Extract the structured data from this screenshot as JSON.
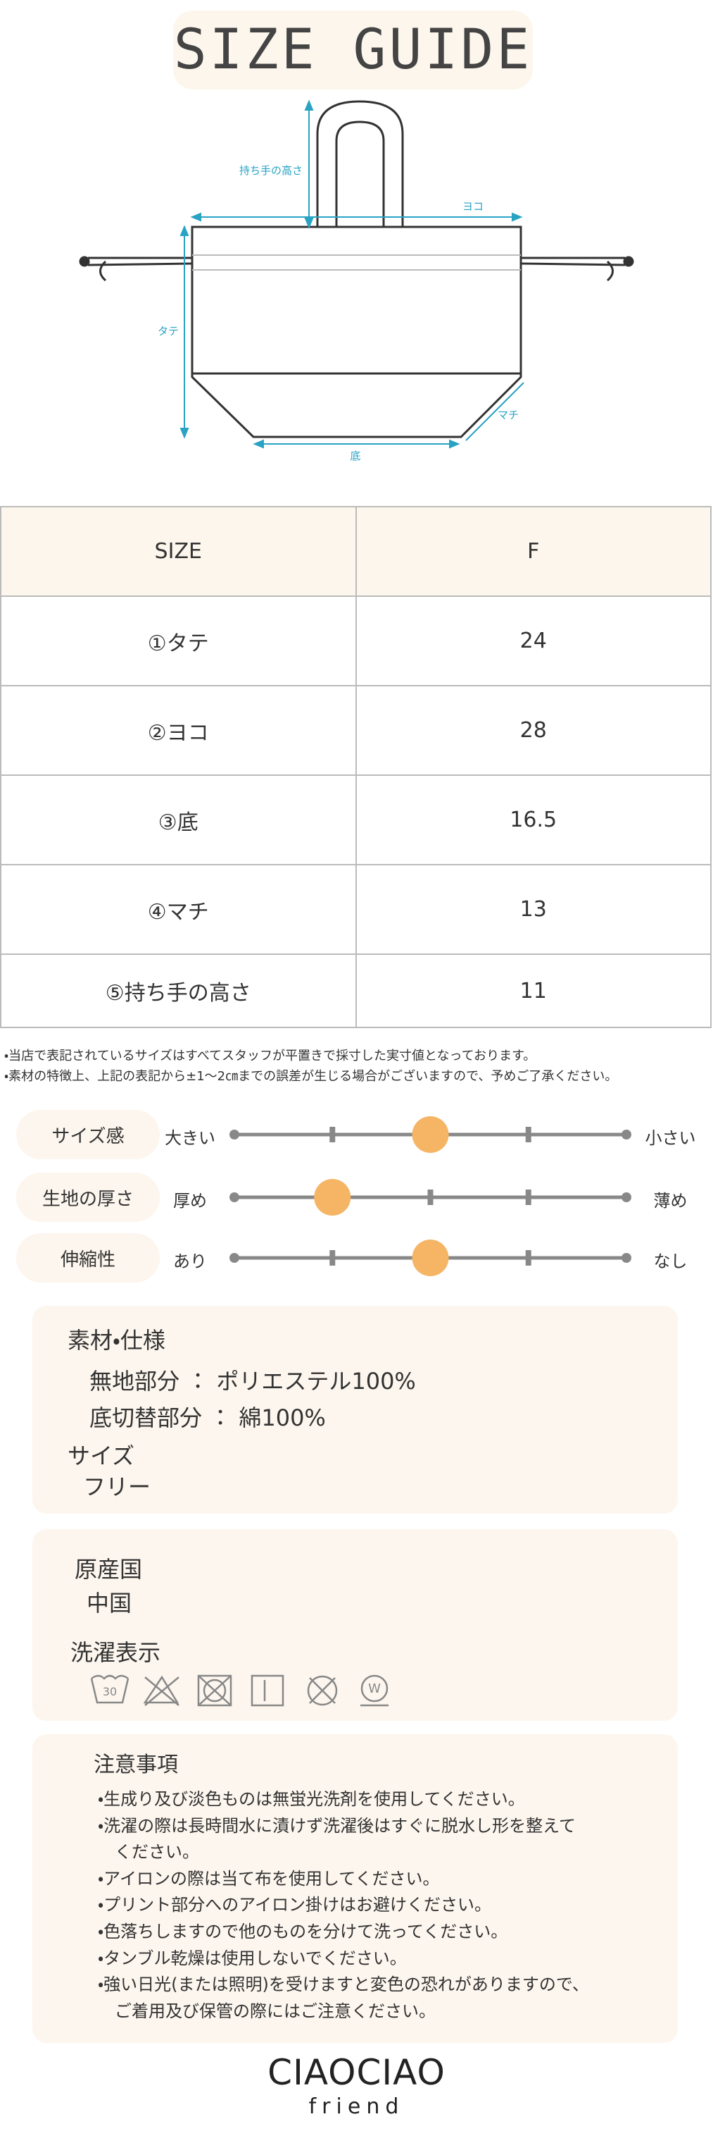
{
  "header": {
    "title": "SIZE GUIDE"
  },
  "diagram": {
    "handle_height": "持ち手の高さ",
    "width": "ヨコ",
    "height": "タテ",
    "bottom": "底",
    "gusset": "マチ"
  },
  "table": {
    "header": [
      "SIZE",
      "F"
    ],
    "rows": [
      [
        "①タテ",
        "24"
      ],
      [
        "②ヨコ",
        "28"
      ],
      [
        "③底",
        "16.5"
      ],
      [
        "④マチ",
        "13"
      ],
      [
        "⑤持ち手の高さ",
        "11"
      ]
    ]
  },
  "notes": [
    "・当店で表記されているサイズはすべてスタッフが平置きで採寸した実寸値となっております。",
    "・素材の特徴上、上記の表記から±1〜2㎝までの誤差が生じる場合がございますので、予めご了承ください。"
  ],
  "sliders": [
    {
      "label": "サイズ感",
      "left": "大きい",
      "right": "小さい",
      "level": 2
    },
    {
      "label": "生地の厚さ",
      "left": "厚め",
      "right": "薄め",
      "level": 1
    },
    {
      "label": "伸縮性",
      "left": "あり",
      "right": "なし",
      "level": 2
    }
  ],
  "materials": {
    "title": "素材・仕様",
    "lines": [
      "無地部分 ： ポリエステル100%",
      "底切替部分 ： 綿100%"
    ],
    "size_title": "サイズ",
    "size": "フリー"
  },
  "origin": {
    "title": "原産国",
    "value": "中国",
    "care_title": "洗濯表示",
    "wash_temp": "30",
    "wet_clean": "W"
  },
  "cautions": {
    "title": "注意事項",
    "items": [
      [
        "・生成り及び淡色ものは無蛍光洗剤を使用してください。"
      ],
      [
        "・洗濯の際は長時間水に漬けず洗濯後はすぐに脱水し形を整えて",
        "　ください。"
      ],
      [
        "・アイロンの際は当て布を使用してください。"
      ],
      [
        "・プリント部分へのアイロン掛けはお避けください。"
      ],
      [
        "・色落ちしますので他のものを分けて洗ってください。"
      ],
      [
        "・タンブル乾燥は使用しないでください。"
      ],
      [
        "・強い日光(または照明)を受けますと変色の恐れがありますので、",
        "　ご着用及び保管の際にはご注意ください。"
      ]
    ]
  },
  "logo": {
    "name": "CIAOCIAO",
    "sub": "friend"
  }
}
